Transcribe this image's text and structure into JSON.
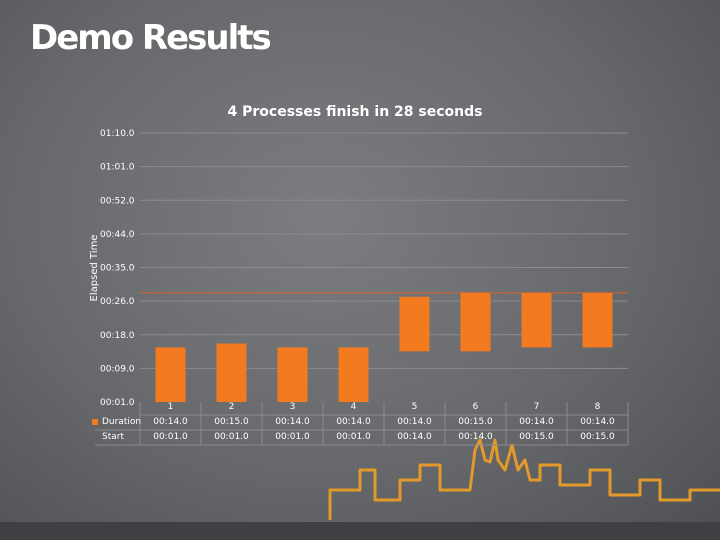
{
  "slide": {
    "title": "Demo Results"
  },
  "colors": {
    "accent": "#f47a20",
    "grid": "#8a8b8d",
    "line": "#d9622b"
  },
  "chart_data": {
    "type": "bar",
    "title": "4 Processes finish in 28 seconds",
    "xlabel": "",
    "ylabel": "Elapsed Time",
    "y_ticks": [
      "00:01.0",
      "00:09.0",
      "00:18.0",
      "00:26.0",
      "00:35.0",
      "00:44.0",
      "00:52.0",
      "01:01.0",
      "01:10.0"
    ],
    "ylim_seconds": [
      1,
      70
    ],
    "reference_line_seconds": 29,
    "categories": [
      "1",
      "2",
      "3",
      "4",
      "5",
      "6",
      "7",
      "8"
    ],
    "series": [
      {
        "name": "Duration",
        "values": [
          "00:14.0",
          "00:15.0",
          "00:14.0",
          "00:14.0",
          "00:14.0",
          "00:15.0",
          "00:14.0",
          "00:14.0"
        ]
      },
      {
        "name": "Start",
        "values": [
          "00:01.0",
          "00:01.0",
          "00:01.0",
          "00:01.0",
          "00:14.0",
          "00:14.0",
          "00:15.0",
          "00:15.0"
        ]
      }
    ],
    "legend": "table-below"
  }
}
